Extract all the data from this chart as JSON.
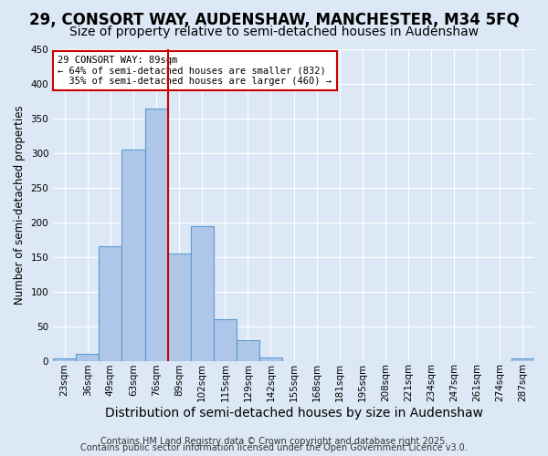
{
  "title1": "29, CONSORT WAY, AUDENSHAW, MANCHESTER, M34 5FQ",
  "title2": "Size of property relative to semi-detached houses in Audenshaw",
  "xlabel": "Distribution of semi-detached houses by size in Audenshaw",
  "ylabel": "Number of semi-detached properties",
  "bar_labels": [
    "23sqm",
    "36sqm",
    "49sqm",
    "63sqm",
    "76sqm",
    "89sqm",
    "102sqm",
    "115sqm",
    "129sqm",
    "142sqm",
    "155sqm",
    "168sqm",
    "181sqm",
    "195sqm",
    "208sqm",
    "221sqm",
    "234sqm",
    "247sqm",
    "261sqm",
    "274sqm",
    "287sqm"
  ],
  "bar_heights": [
    3,
    10,
    165,
    305,
    365,
    155,
    195,
    60,
    30,
    5,
    0,
    0,
    0,
    0,
    0,
    0,
    0,
    0,
    0,
    0,
    3
  ],
  "bar_color": "#aec6e8",
  "bar_edge_color": "#5b9bd5",
  "vline_x": 5,
  "vline_color": "#cc0000",
  "annotation_text": "29 CONSORT WAY: 89sqm\n← 64% of semi-detached houses are smaller (832)\n  35% of semi-detached houses are larger (460) →",
  "annotation_box_color": "#cc0000",
  "annotation_text_color": "#000000",
  "ylim": [
    0,
    450
  ],
  "yticks": [
    0,
    50,
    100,
    150,
    200,
    250,
    300,
    350,
    400,
    450
  ],
  "footnote1": "Contains HM Land Registry data © Crown copyright and database right 2025.",
  "footnote2": "Contains public sector information licensed under the Open Government Licence v3.0.",
  "background_color": "#dce8f5",
  "plot_bg_color": "#dce8f5",
  "title1_fontsize": 12,
  "title2_fontsize": 10,
  "xlabel_fontsize": 10,
  "ylabel_fontsize": 8.5,
  "tick_fontsize": 7.5,
  "footnote_fontsize": 7
}
